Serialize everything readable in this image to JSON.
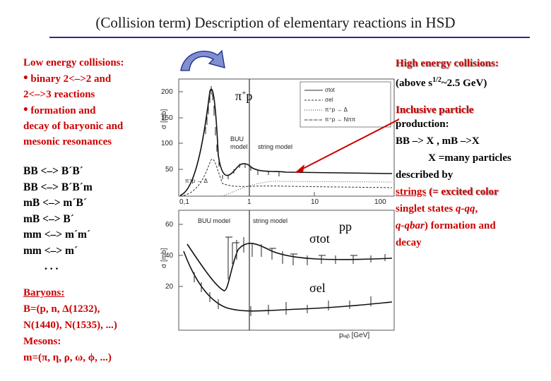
{
  "title": "(Collision term) Description of elementary reactions in HSD",
  "left": {
    "heading": "Low energy collisions:",
    "bullet_char": "•",
    "item1_line1": "binary 2<–>2 and",
    "item1_line2": "2<–>3  reactions",
    "item2_line1": "formation and",
    "item2_line2": "decay of baryonic and",
    "item2_line3": "mesonic resonances",
    "reactions": [
      "BB <–> B´B´",
      "BB <–> B´B´m",
      "mB <–> m´B´",
      "mB <–> B´",
      "mm <–> m´m´",
      "mm <–> m´",
      ". . ."
    ],
    "baryons_heading": "Baryons:",
    "baryons_line1": "B=(p, n, Δ(1232),",
    "baryons_line2": "N(1440), N(1535), ...)",
    "mesons_heading": "Mesons:",
    "mesons_line": "m=(π, η, ρ, ω, ϕ, ...)"
  },
  "right": {
    "heading": "High energy collisions:",
    "above_prefix": "(above s",
    "above_exp": "1/2",
    "above_suffix": "~2.5 GeV)",
    "incl1": "Inclusive particle",
    "incl2": "production:",
    "bb_line": "BB –> X , mB –>X",
    "x_line": "X =many particles",
    "described": "described by",
    "strings_word": "strings",
    "strings_rest": " (= excited color",
    "singlet_pre": "singlet states ",
    "singlet_q": "q-qq",
    "singlet_post": ",",
    "qqbar": "q-qbar",
    "formation_rest": ") formation and",
    "decay": "decay"
  },
  "plot_top": {
    "reaction_pi": "π",
    "reaction_sup": "+",
    "reaction_p": "p",
    "ylabel": "σ [mb]",
    "y_ticks": [
      "200",
      "150",
      "100",
      "50"
    ],
    "x_ticks": [
      "0,1",
      "1",
      "10",
      "100"
    ],
    "model_buu_1": "BUU",
    "model_buu_2": "model",
    "model_string": "string model",
    "legend": [
      "σtot",
      "σel",
      "π⁺p → Δ",
      "π⁺p → Nππ"
    ],
    "decay_label": "π⁺p → Δ"
  },
  "plot_bottom": {
    "reaction": "pp",
    "ylabel": "σ [mb]",
    "y_ticks": [
      "60",
      "40",
      "20"
    ],
    "xlabel": "pₗₐᵦ [GeV]",
    "model_buu": "BUU model",
    "model_string": "string model",
    "sigma_tot": "σtot",
    "sigma_el": "σel"
  },
  "colors": {
    "red": "#cc0000",
    "title_rule": "#2a2a9a",
    "arrow_fill": "#7f8fd0",
    "pointer_arrow": "#cc0000"
  }
}
